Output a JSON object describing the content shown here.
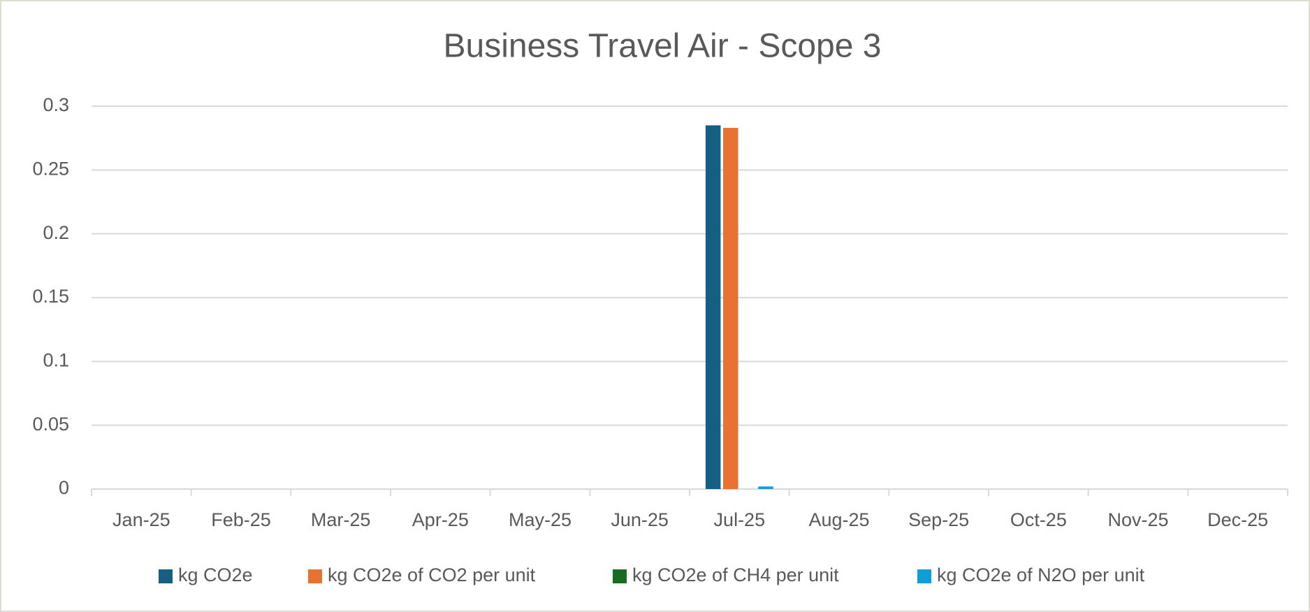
{
  "chart_data": {
    "type": "bar",
    "title": "Business Travel Air - Scope 3",
    "categories": [
      "Jan-25",
      "Feb-25",
      "Mar-25",
      "Apr-25",
      "May-25",
      "Jun-25",
      "Jul-25",
      "Aug-25",
      "Sep-25",
      "Oct-25",
      "Nov-25",
      "Dec-25"
    ],
    "series": [
      {
        "name": "kg CO2e",
        "color": "#156082",
        "values": [
          0,
          0,
          0,
          0,
          0,
          0,
          0.285,
          0,
          0,
          0,
          0,
          0
        ]
      },
      {
        "name": "kg CO2e of CO2 per unit",
        "color": "#e97132",
        "values": [
          0,
          0,
          0,
          0,
          0,
          0,
          0.283,
          0,
          0,
          0,
          0,
          0
        ]
      },
      {
        "name": "kg CO2e of CH4 per unit",
        "color": "#196b24",
        "values": [
          0,
          0,
          0,
          0,
          0,
          0,
          0,
          0,
          0,
          0,
          0,
          0
        ]
      },
      {
        "name": "kg CO2e of N2O per unit",
        "color": "#0f9ed5",
        "values": [
          0,
          0,
          0,
          0,
          0,
          0,
          0.002,
          0,
          0,
          0,
          0,
          0
        ]
      }
    ],
    "ylim": [
      0,
      0.3
    ],
    "yticks": [
      0,
      0.05,
      0.1,
      0.15,
      0.2,
      0.25,
      0.3
    ],
    "grid": true,
    "legend": "bottom"
  }
}
